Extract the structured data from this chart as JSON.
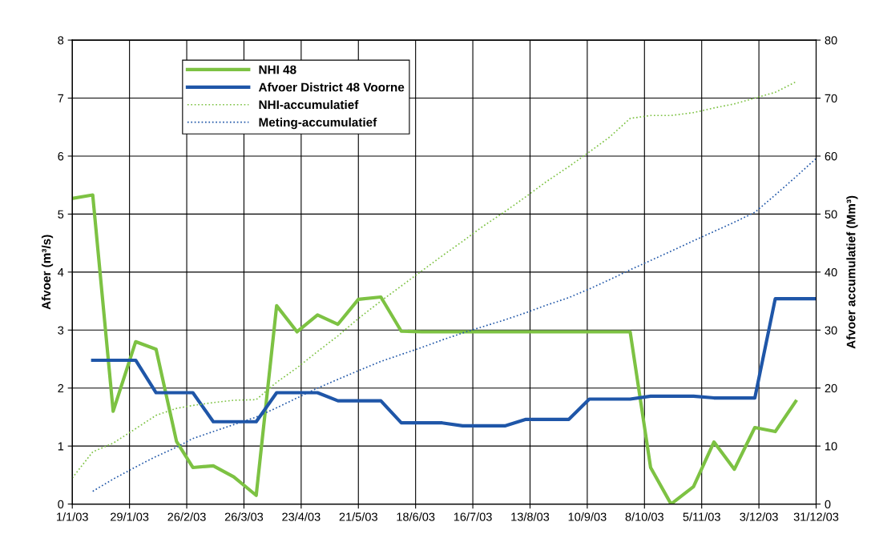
{
  "chart_data": {
    "type": "line",
    "ylabel": "Afvoer (m³/s)",
    "y2label": "Afvoer accumulatief (Mm³)",
    "xlim": [
      "2003-01-01",
      "2003-12-31"
    ],
    "xticks": [
      {
        "value": "2003-01-01",
        "label": "1/1/03"
      },
      {
        "value": "2003-01-29",
        "label": "29/1/03"
      },
      {
        "value": "2003-02-26",
        "label": "26/2/03"
      },
      {
        "value": "2003-03-26",
        "label": "26/3/03"
      },
      {
        "value": "2003-04-23",
        "label": "23/4/03"
      },
      {
        "value": "2003-05-21",
        "label": "21/5/03"
      },
      {
        "value": "2003-06-18",
        "label": "18/6/03"
      },
      {
        "value": "2003-07-16",
        "label": "16/7/03"
      },
      {
        "value": "2003-08-13",
        "label": "13/8/03"
      },
      {
        "value": "2003-09-10",
        "label": "10/9/03"
      },
      {
        "value": "2003-10-08",
        "label": "8/10/03"
      },
      {
        "value": "2003-11-05",
        "label": "5/11/03"
      },
      {
        "value": "2003-12-03",
        "label": "3/12/03"
      },
      {
        "value": "2003-12-31",
        "label": "31/12/03"
      }
    ],
    "ylim": [
      0,
      8
    ],
    "yticks": [
      0,
      1,
      2,
      3,
      4,
      5,
      6,
      7,
      8
    ],
    "y2lim": [
      0,
      80
    ],
    "y2ticks": [
      0,
      10,
      20,
      30,
      40,
      50,
      60,
      70,
      80
    ],
    "grid": true,
    "legend": "top left",
    "marker": "none",
    "series": [
      {
        "name": "NHI 48",
        "color": "#7dc243",
        "line_style": "solid",
        "x": [
          "2003-01-01",
          "2003-01-11",
          "2003-01-21",
          "2003-02-01",
          "2003-02-11",
          "2003-02-21",
          "2003-03-01",
          "2003-03-11",
          "2003-03-21",
          "2003-04-01",
          "2003-04-11",
          "2003-04-21",
          "2003-05-01",
          "2003-05-11",
          "2003-05-21",
          "2003-06-01",
          "2003-06-11",
          "2003-06-21",
          "2003-07-01",
          "2003-07-11",
          "2003-07-21",
          "2003-08-01",
          "2003-08-11",
          "2003-08-21",
          "2003-09-01",
          "2003-09-11",
          "2003-09-21",
          "2003-10-01",
          "2003-10-11",
          "2003-10-21",
          "2003-11-01",
          "2003-11-11",
          "2003-11-21",
          "2003-12-01",
          "2003-12-11",
          "2003-12-21"
        ],
        "values": [
          5.27,
          5.33,
          1.6,
          2.8,
          2.67,
          1.08,
          0.63,
          0.66,
          0.47,
          0.15,
          3.42,
          2.97,
          3.26,
          3.1,
          3.53,
          3.57,
          2.98,
          2.97,
          2.97,
          2.97,
          2.97,
          2.97,
          2.97,
          2.97,
          2.97,
          2.97,
          2.97,
          2.97,
          0.63,
          0.0,
          0.3,
          1.07,
          0.6,
          1.32,
          1.25,
          1.77
        ]
      },
      {
        "name": "Afvoer District 48 Voorne",
        "color": "#1f56a8",
        "line_style": "solid",
        "x": [
          "2003-01-11",
          "2003-01-21",
          "2003-02-01",
          "2003-02-11",
          "2003-02-21",
          "2003-03-01",
          "2003-03-11",
          "2003-03-21",
          "2003-04-01",
          "2003-04-11",
          "2003-04-21",
          "2003-05-01",
          "2003-05-11",
          "2003-05-21",
          "2003-06-01",
          "2003-06-11",
          "2003-06-21",
          "2003-07-01",
          "2003-07-11",
          "2003-07-21",
          "2003-08-01",
          "2003-08-11",
          "2003-08-21",
          "2003-09-01",
          "2003-09-11",
          "2003-09-21",
          "2003-10-01",
          "2003-10-11",
          "2003-10-21",
          "2003-11-01",
          "2003-11-11",
          "2003-11-21",
          "2003-12-01",
          "2003-12-11",
          "2003-12-21",
          "2003-12-31"
        ],
        "values": [
          2.48,
          2.48,
          2.48,
          1.92,
          1.92,
          1.92,
          1.42,
          1.42,
          1.42,
          1.92,
          1.92,
          1.92,
          1.78,
          1.78,
          1.78,
          1.4,
          1.4,
          1.4,
          1.35,
          1.35,
          1.35,
          1.46,
          1.46,
          1.46,
          1.81,
          1.81,
          1.81,
          1.86,
          1.86,
          1.86,
          1.83,
          1.83,
          1.83,
          3.54,
          3.54,
          3.54
        ]
      },
      {
        "name": "NHI-accumulatief",
        "color": "#7dc243",
        "line_style": "dotted",
        "axis": "y2",
        "x": [
          "2003-01-01",
          "2003-01-11",
          "2003-01-21",
          "2003-02-01",
          "2003-02-11",
          "2003-02-21",
          "2003-03-01",
          "2003-03-11",
          "2003-03-21",
          "2003-04-01",
          "2003-04-11",
          "2003-04-21",
          "2003-05-01",
          "2003-05-11",
          "2003-05-21",
          "2003-06-01",
          "2003-06-11",
          "2003-06-21",
          "2003-07-01",
          "2003-07-11",
          "2003-07-21",
          "2003-08-01",
          "2003-08-11",
          "2003-08-21",
          "2003-09-01",
          "2003-09-11",
          "2003-09-21",
          "2003-10-01",
          "2003-10-11",
          "2003-10-21",
          "2003-11-01",
          "2003-11-11",
          "2003-11-21",
          "2003-12-01",
          "2003-12-11",
          "2003-12-21"
        ],
        "values": [
          4.5,
          9.0,
          10.5,
          13,
          15.3,
          16.5,
          17.0,
          17.5,
          17.9,
          18.0,
          21.0,
          23.5,
          26.3,
          29.0,
          32.0,
          35.0,
          37.6,
          40.2,
          42.8,
          45.3,
          47.9,
          50.5,
          53.0,
          55.6,
          58.2,
          60.7,
          63.3,
          66.5,
          67.0,
          67.0,
          67.5,
          68.3,
          69.0,
          70.0,
          71.0,
          72.8
        ]
      },
      {
        "name": "Meting-accumulatief",
        "color": "#1f56a8",
        "line_style": "dotted",
        "axis": "y2",
        "x": [
          "2003-01-11",
          "2003-01-21",
          "2003-02-01",
          "2003-02-11",
          "2003-02-21",
          "2003-03-01",
          "2003-03-11",
          "2003-03-21",
          "2003-04-01",
          "2003-04-11",
          "2003-04-21",
          "2003-05-01",
          "2003-05-11",
          "2003-05-21",
          "2003-06-01",
          "2003-06-11",
          "2003-06-21",
          "2003-07-01",
          "2003-07-11",
          "2003-07-21",
          "2003-08-01",
          "2003-08-11",
          "2003-08-21",
          "2003-09-01",
          "2003-09-11",
          "2003-09-21",
          "2003-10-01",
          "2003-10-11",
          "2003-10-21",
          "2003-11-01",
          "2003-11-11",
          "2003-11-21",
          "2003-12-01",
          "2003-12-11",
          "2003-12-21",
          "2003-12-31"
        ],
        "values": [
          2.2,
          4.3,
          6.4,
          8.2,
          9.8,
          11.3,
          12.5,
          13.7,
          15.0,
          16.6,
          18.3,
          20.0,
          21.5,
          23.0,
          24.6,
          25.8,
          27.0,
          28.3,
          29.5,
          30.6,
          31.8,
          33.0,
          34.3,
          35.6,
          37.1,
          38.7,
          40.4,
          42.0,
          43.6,
          45.4,
          47.0,
          48.6,
          50.3,
          53.3,
          56.4,
          59.6
        ]
      }
    ]
  }
}
